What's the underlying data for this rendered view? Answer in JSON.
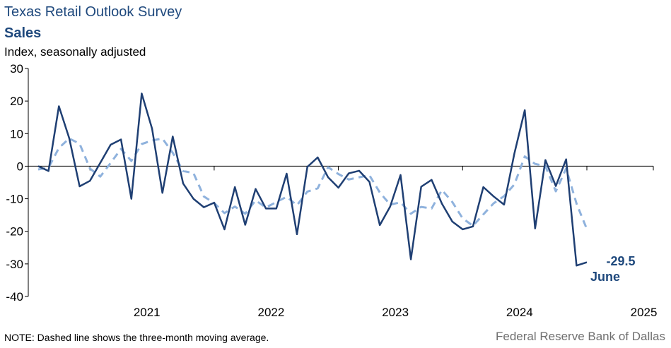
{
  "header": {
    "title": "Texas Retail Outlook Survey",
    "subtitle": "Sales",
    "ylabel": "Index, seasonally adjusted"
  },
  "footer": {
    "note": "NOTE: Dashed line shows the three-month  moving average.",
    "source": "Federal Reserve Bank of Dallas"
  },
  "colors": {
    "actual": "#1f3f73",
    "moving_average": "#8fb2dd",
    "text": "#1f497d"
  },
  "chart_data": {
    "type": "line",
    "title": "Texas Retail Outlook Survey",
    "subtitle": "Sales",
    "ylabel": "Index, seasonally adjusted",
    "ylim": [
      -40,
      30
    ],
    "yticks": [
      30,
      20,
      10,
      0,
      -10,
      -20,
      -30,
      -40
    ],
    "xtick_labels": [
      "2021",
      "2022",
      "2023",
      "2024",
      "2025"
    ],
    "x_start": "2020-08",
    "x_end": "2025-06",
    "series": [
      {
        "style": "solid",
        "values": [
          0,
          -1.5,
          18.4,
          8.6,
          -6.2,
          -4.5,
          1,
          6.6,
          8.2,
          -10,
          22.3,
          11.5,
          -8.2,
          9.1,
          -5.3,
          -10,
          -12.6,
          -11.2,
          -19.4,
          -6.4,
          -18,
          -7,
          -13,
          -13,
          -2.3,
          -20.9,
          -0.2,
          2.7,
          -3.4,
          -6.6,
          -2.2,
          -1.4,
          -4.8,
          -18.1,
          -12.4,
          -2.7,
          -28.6,
          -6.3,
          -4.2,
          -11.5,
          -17,
          -19.4,
          -18.5,
          -6.4,
          -9.3,
          -11.8,
          3.9,
          17.2,
          -19.1,
          1.9,
          -6.1,
          2.1,
          -30.5,
          -29.5
        ]
      },
      {
        "style": "dashed",
        "values": [
          -1,
          -0.5,
          5.6,
          8.5,
          6.9,
          -0.7,
          -3.2,
          1,
          5.3,
          1.6,
          6.8,
          7.9,
          8.5,
          4.1,
          -1.5,
          -2.1,
          -9.3,
          -11.3,
          -14.4,
          -12.4,
          -14.6,
          -10.5,
          -12.7,
          -11,
          -9.4,
          -12,
          -7.8,
          -6.8,
          -0.3,
          -2.4,
          -4.1,
          -3.4,
          -2.8,
          -8.1,
          -11.8,
          -11.1,
          -14.6,
          -12.5,
          -13,
          -7.3,
          -11,
          -16,
          -18.3,
          -14.8,
          -11.4,
          -9.2,
          -5.6,
          3,
          0.7,
          0,
          -7.7,
          -0.7,
          -11.5,
          -19.3
        ]
      }
    ],
    "annotation": {
      "value": "-29.5",
      "label": "June"
    }
  }
}
